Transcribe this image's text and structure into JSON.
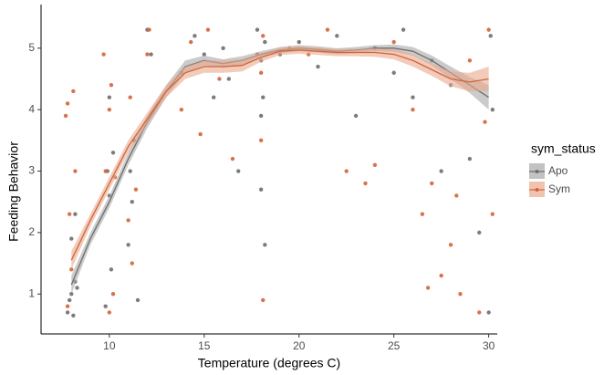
{
  "chart_data": {
    "type": "scatter",
    "x_label": "Temperature (degrees C)",
    "y_label": "Feeding Behavior",
    "legend_title": "sym_status",
    "legend": "right",
    "xlim": [
      6.4,
      30.45
    ],
    "ylim": [
      0.35,
      5.71
    ],
    "xticks": [
      10,
      15,
      20,
      25,
      30
    ],
    "yticks": [
      1,
      2,
      3,
      4,
      5
    ],
    "series": [
      {
        "name": "Apo",
        "color": "#6e6e6e",
        "band_color": "#a8a8a8",
        "x": [
          7.8,
          8.0,
          8.2,
          7.9,
          8.1,
          8.3,
          8.0,
          8.2,
          9.8,
          10.1,
          10.0,
          9.9,
          10.2,
          10.0,
          11.0,
          11.2,
          11.1,
          11.3,
          11.5,
          12.0,
          12.2,
          13.8,
          14.5,
          15.0,
          15.5,
          16.0,
          16.3,
          17.8,
          18.0,
          18.1,
          18.0,
          18.2,
          18.0,
          18.2,
          19.0,
          20.0,
          21.0,
          22.0,
          23.0,
          24.0,
          25.0,
          25.5,
          26.0,
          27.0,
          27.5,
          28.0,
          29.0,
          29.5,
          30.0,
          30.2,
          30.1,
          16.8
        ],
        "values": [
          0.7,
          1.0,
          1.2,
          0.9,
          0.65,
          1.1,
          1.9,
          2.3,
          0.8,
          1.4,
          2.6,
          3.0,
          3.3,
          4.2,
          1.8,
          2.5,
          3.0,
          3.5,
          0.9,
          5.3,
          4.9,
          4.6,
          5.2,
          4.9,
          4.2,
          5.0,
          4.5,
          5.3,
          4.8,
          4.2,
          3.9,
          5.1,
          2.7,
          1.8,
          4.9,
          5.1,
          4.7,
          5.2,
          3.9,
          5.0,
          4.6,
          5.3,
          4.2,
          4.8,
          3.0,
          4.4,
          3.2,
          2.0,
          0.7,
          4.0,
          5.2,
          3.0
        ],
        "fit": {
          "x": [
            8,
            9,
            10,
            11,
            12,
            13,
            14,
            15,
            16,
            17,
            18,
            19,
            20,
            21,
            22,
            23,
            24,
            25,
            26,
            27,
            28,
            29,
            30
          ],
          "values": [
            1.15,
            1.9,
            2.5,
            3.2,
            3.8,
            4.3,
            4.7,
            4.8,
            4.75,
            4.8,
            4.9,
            4.97,
            5.0,
            4.98,
            4.95,
            4.97,
            5.0,
            5.0,
            4.95,
            4.8,
            4.6,
            4.4,
            4.2
          ],
          "lower": [
            1.0,
            1.8,
            2.4,
            3.1,
            3.7,
            4.2,
            4.6,
            4.72,
            4.68,
            4.73,
            4.85,
            4.92,
            4.95,
            4.93,
            4.9,
            4.92,
            4.95,
            4.94,
            4.88,
            4.72,
            4.5,
            4.27,
            4.0
          ],
          "upper": [
            1.3,
            2.0,
            2.6,
            3.3,
            3.9,
            4.4,
            4.8,
            4.88,
            4.82,
            4.87,
            4.95,
            5.02,
            5.05,
            5.03,
            5.0,
            5.02,
            5.05,
            5.06,
            5.02,
            4.88,
            4.7,
            4.53,
            4.4
          ]
        }
      },
      {
        "name": "Sym",
        "color": "#d2643a",
        "band_color": "#eaa98c",
        "x": [
          7.7,
          7.8,
          7.9,
          8.1,
          8.0,
          7.8,
          8.2,
          9.7,
          9.8,
          10.0,
          10.1,
          10.2,
          10.3,
          10.0,
          11.0,
          11.2,
          11.1,
          11.4,
          12.0,
          12.1,
          13.8,
          14.3,
          14.8,
          15.2,
          15.8,
          16.5,
          17.8,
          18.0,
          18.1,
          18.0,
          18.1,
          19.5,
          20.5,
          21.5,
          22.5,
          23.5,
          24.0,
          25.0,
          26.0,
          26.5,
          26.8,
          27.0,
          27.5,
          28.0,
          28.3,
          28.5,
          29.0,
          29.5,
          30.0,
          30.2,
          29.8
        ],
        "values": [
          3.9,
          4.1,
          2.3,
          4.3,
          1.4,
          0.8,
          3.0,
          4.9,
          3.0,
          4.0,
          4.4,
          1.0,
          2.9,
          0.7,
          2.2,
          1.5,
          4.2,
          2.7,
          4.9,
          5.3,
          4.0,
          5.1,
          3.6,
          5.3,
          4.5,
          3.2,
          4.9,
          3.5,
          5.2,
          4.6,
          0.9,
          5.0,
          4.9,
          5.3,
          3.0,
          2.8,
          3.1,
          5.1,
          4.0,
          2.3,
          1.1,
          2.8,
          1.3,
          1.8,
          2.6,
          1.0,
          4.8,
          0.7,
          5.3,
          2.3,
          3.8
        ],
        "fit": {
          "x": [
            8,
            9,
            10,
            11,
            12,
            13,
            14,
            15,
            16,
            17,
            18,
            19,
            20,
            21,
            22,
            23,
            24,
            25,
            26,
            27,
            28,
            29,
            30
          ],
          "values": [
            1.55,
            2.2,
            2.8,
            3.4,
            3.85,
            4.3,
            4.6,
            4.7,
            4.7,
            4.72,
            4.85,
            4.95,
            4.97,
            4.95,
            4.93,
            4.93,
            4.93,
            4.9,
            4.8,
            4.65,
            4.5,
            4.45,
            4.5
          ],
          "lower": [
            1.4,
            2.1,
            2.7,
            3.3,
            3.75,
            4.2,
            4.5,
            4.6,
            4.6,
            4.62,
            4.78,
            4.89,
            4.91,
            4.89,
            4.87,
            4.87,
            4.86,
            4.82,
            4.7,
            4.55,
            4.38,
            4.3,
            4.3
          ],
          "upper": [
            1.7,
            2.3,
            2.9,
            3.5,
            3.95,
            4.4,
            4.7,
            4.8,
            4.8,
            4.82,
            4.92,
            5.01,
            5.03,
            5.01,
            4.99,
            4.99,
            5.0,
            4.98,
            4.9,
            4.75,
            4.62,
            4.6,
            4.7
          ]
        }
      }
    ]
  }
}
